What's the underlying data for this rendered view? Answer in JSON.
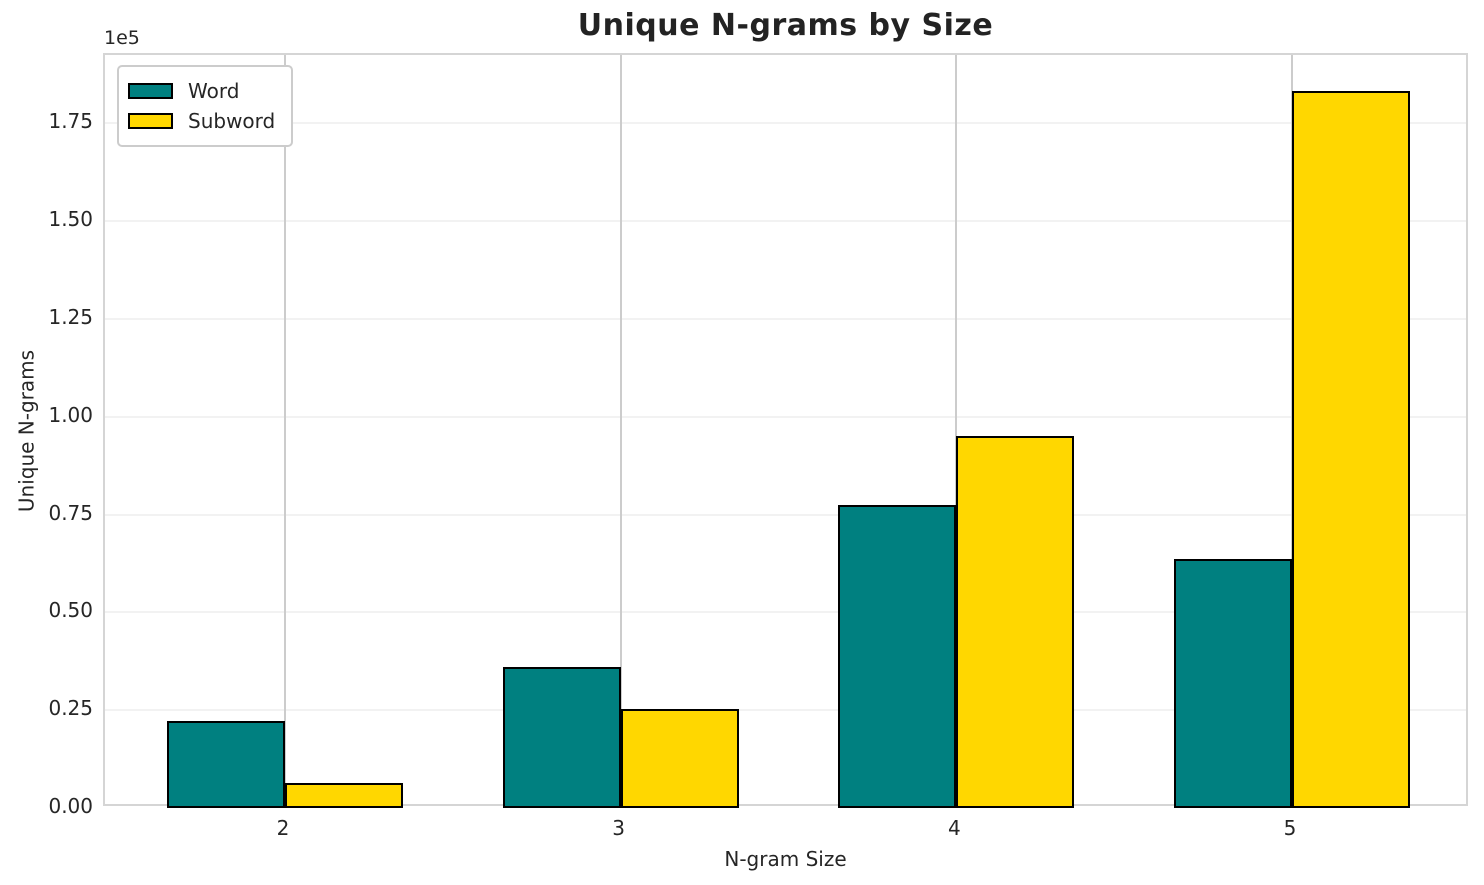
{
  "figure": {
    "title": "Unique N-grams by Size",
    "y_offset_label": "1e5",
    "xlabel": "N-gram Size",
    "ylabel": "Unique N-grams"
  },
  "legend": {
    "position": "upper left",
    "items": [
      {
        "label": "Word",
        "color": "#008080"
      },
      {
        "label": "Subword",
        "color": "#FFD700"
      }
    ]
  },
  "chart_data": {
    "type": "bar",
    "title": "Unique N-grams by Size",
    "xlabel": "N-gram Size",
    "ylabel": "Unique N-grams",
    "categories": [
      "2",
      "3",
      "4",
      "5"
    ],
    "series": [
      {
        "name": "Word",
        "color": "#008080",
        "values": [
          22300,
          36000,
          77400,
          63600
        ]
      },
      {
        "name": "Subword",
        "color": "#FFD700",
        "values": [
          6400,
          25300,
          95000,
          183200
        ]
      }
    ],
    "ylim": [
      0,
      192500
    ],
    "yticks": [
      0,
      25000,
      50000,
      75000,
      100000,
      125000,
      150000,
      175000
    ],
    "ytick_labels": [
      "0.00",
      "0.25",
      "0.50",
      "0.75",
      "1.00",
      "1.25",
      "1.50",
      "1.75"
    ],
    "y_scale_offset_text": "1e5",
    "grid": true,
    "bar_edge_color": "#000000",
    "legend_position": "upper left"
  },
  "colors": {
    "background": "#ffffff",
    "spine": "#d5d5d5",
    "grid_horizontal": "#f2f2f2",
    "grid_vertical": "#cccccc",
    "text": "#262626",
    "series_word": "#008080",
    "series_subword": "#FFD700"
  }
}
